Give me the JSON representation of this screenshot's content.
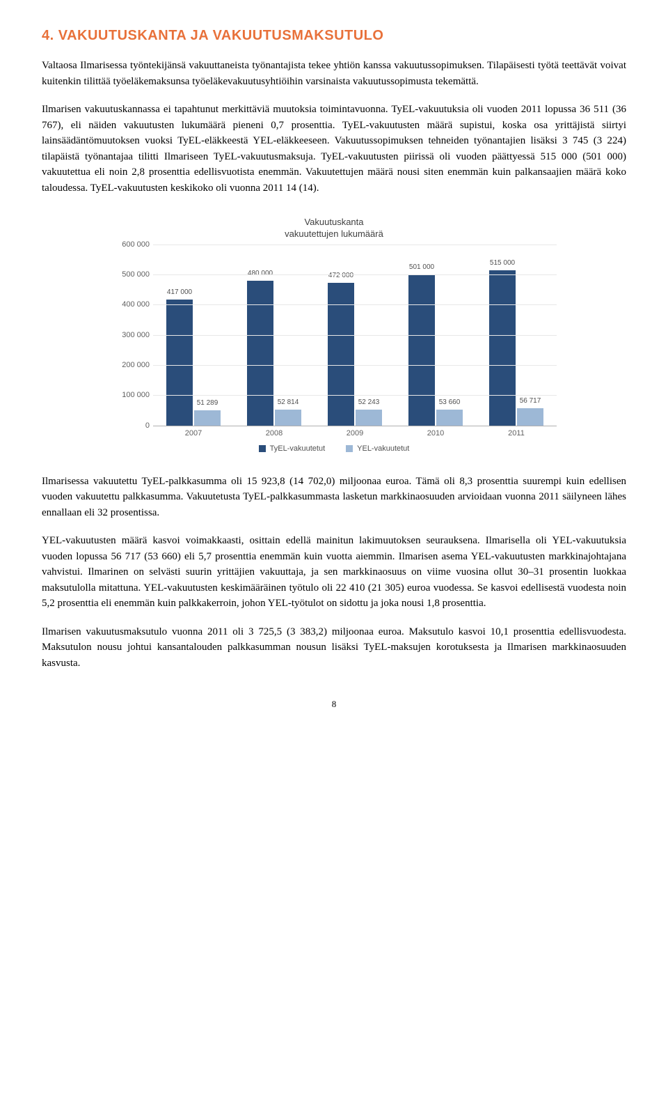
{
  "heading": "4. VAKUUTUSKANTA JA VAKUUTUSMAKSUTULO",
  "paragraphs": {
    "p1": "Valtaosa Ilmarisessa työntekijänsä vakuuttaneista työnantajista tekee yhtiön kanssa vakuutussopimuksen. Tilapäisesti työtä teettävät voivat kuitenkin tilittää työeläkemaksunsa työeläkevakuutusyhtiöihin varsinaista vakuutussopimusta tekemättä.",
    "p2": "Ilmarisen vakuutuskannassa ei tapahtunut merkittäviä muutoksia toimintavuonna. TyEL-vakuutuksia oli vuoden 2011 lopussa 36 511 (36 767), eli näiden vakuutusten lukumäärä pieneni 0,7 prosenttia. TyEL-vakuutusten määrä supistui, koska osa yrittäjistä siirtyi lainsäädäntömuutoksen vuoksi TyEL-eläkkeestä YEL-eläkkeeseen. Vakuutussopimuksen tehneiden työnantajien lisäksi 3 745 (3 224) tilapäistä työnantajaa tilitti Ilmariseen TyEL-vakuutusmaksuja. TyEL-vakuutusten piirissä oli vuoden päättyessä 515 000 (501 000) vakuutettua eli noin 2,8 prosenttia edellisvuotista enemmän. Vakuutettujen määrä nousi siten enemmän kuin palkansaajien määrä koko taloudessa. TyEL-vakuutusten keskikoko oli vuonna 2011 14 (14).",
    "p3": "Ilmarisessa vakuutettu TyEL-palkkasumma oli 15 923,8 (14 702,0) miljoonaa euroa. Tämä oli 8,3 prosenttia suurempi kuin edellisen vuoden vakuutettu palkkasumma. Vakuutetusta TyEL-palkkasummasta lasketun markkinaosuuden arvioidaan vuonna 2011 säilyneen lähes ennallaan eli 32 prosentissa.",
    "p4": "YEL-vakuutusten määrä kasvoi voimakkaasti, osittain edellä mainitun lakimuutoksen seurauksena. Ilmarisella oli YEL-vakuutuksia vuoden lopussa 56 717 (53 660) eli 5,7 prosenttia enemmän kuin vuotta aiemmin. Ilmarisen asema YEL-vakuutusten markkinajohtajana vahvistui. Ilmarinen on selvästi suurin yrittäjien vakuuttaja, ja sen markkinaosuus on viime vuosina ollut 30–31 prosentin luokkaa maksutulolla mitattuna. YEL-vakuutusten keskimääräinen työtulo oli 22 410 (21 305) euroa vuodessa. Se kasvoi edellisestä vuodesta noin 5,2 prosenttia eli enemmän kuin palkkakerroin, johon YEL-työtulot on sidottu ja joka nousi 1,8 prosenttia.",
    "p5": "Ilmarisen vakuutusmaksutulo vuonna 2011 oli 3 725,5 (3 383,2) miljoonaa euroa. Maksutulo kasvoi 10,1 prosenttia edellisvuodesta. Maksutulon nousu johtui kansantalouden palkkasumman nousun lisäksi TyEL-maksujen korotuksesta ja Ilmarisen markkinaosuuden kasvusta."
  },
  "chart": {
    "title_line1": "Vakuutuskanta",
    "title_line2": "vakuutettujen lukumäärä",
    "y_ticks": [
      "0",
      "100 000",
      "200 000",
      "300 000",
      "400 000",
      "500 000",
      "600 000"
    ],
    "y_max": 600000,
    "categories": [
      "2007",
      "2008",
      "2009",
      "2010",
      "2011"
    ],
    "series": [
      {
        "name": "TyEL-vakuutetut",
        "color": "#2a4d7a",
        "values": [
          417000,
          480000,
          472000,
          501000,
          515000
        ],
        "labels": [
          "417 000",
          "480 000",
          "472 000",
          "501 000",
          "515 000"
        ]
      },
      {
        "name": "YEL-vakuutetut",
        "color": "#9db8d6",
        "values": [
          51289,
          52814,
          52243,
          53660,
          56717
        ],
        "labels": [
          "51 289",
          "52 814",
          "52 243",
          "53 660",
          "56 717"
        ]
      }
    ],
    "legend_prefix": "■ "
  },
  "page_number": "8"
}
